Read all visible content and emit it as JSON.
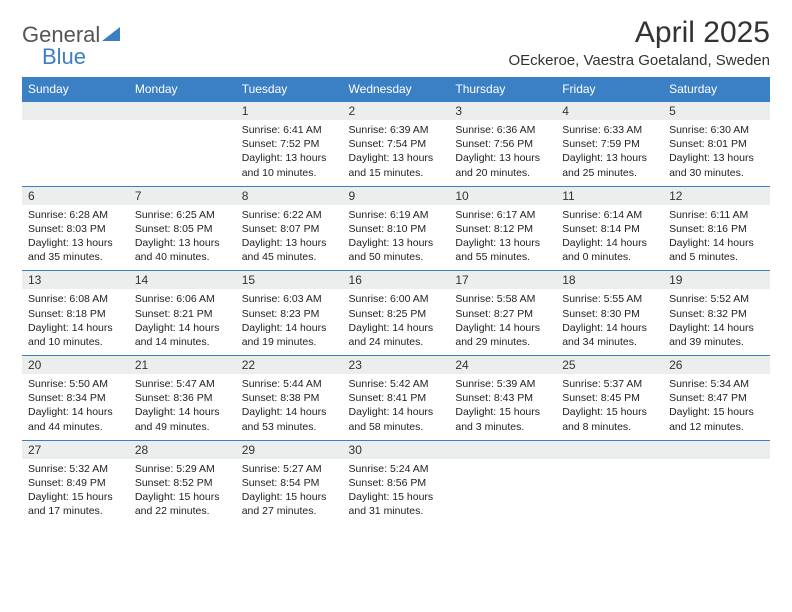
{
  "logo": {
    "text1": "General",
    "text2": "Blue"
  },
  "title": "April 2025",
  "location": "OEckeroe, Vaestra Goetaland, Sweden",
  "headers": [
    "Sunday",
    "Monday",
    "Tuesday",
    "Wednesday",
    "Thursday",
    "Friday",
    "Saturday"
  ],
  "header_bg": "#3b7fc4",
  "daynum_bg": "#eceeee",
  "border_color": "#3b7fc4",
  "weeks": [
    {
      "nums": [
        "",
        "",
        "1",
        "2",
        "3",
        "4",
        "5"
      ],
      "cells": [
        {
          "empty": true
        },
        {
          "empty": true
        },
        {
          "sunrise": "6:41 AM",
          "sunset": "7:52 PM",
          "dl1": "Daylight: 13 hours",
          "dl2": "and 10 minutes."
        },
        {
          "sunrise": "6:39 AM",
          "sunset": "7:54 PM",
          "dl1": "Daylight: 13 hours",
          "dl2": "and 15 minutes."
        },
        {
          "sunrise": "6:36 AM",
          "sunset": "7:56 PM",
          "dl1": "Daylight: 13 hours",
          "dl2": "and 20 minutes."
        },
        {
          "sunrise": "6:33 AM",
          "sunset": "7:59 PM",
          "dl1": "Daylight: 13 hours",
          "dl2": "and 25 minutes."
        },
        {
          "sunrise": "6:30 AM",
          "sunset": "8:01 PM",
          "dl1": "Daylight: 13 hours",
          "dl2": "and 30 minutes."
        }
      ]
    },
    {
      "nums": [
        "6",
        "7",
        "8",
        "9",
        "10",
        "11",
        "12"
      ],
      "cells": [
        {
          "sunrise": "6:28 AM",
          "sunset": "8:03 PM",
          "dl1": "Daylight: 13 hours",
          "dl2": "and 35 minutes."
        },
        {
          "sunrise": "6:25 AM",
          "sunset": "8:05 PM",
          "dl1": "Daylight: 13 hours",
          "dl2": "and 40 minutes."
        },
        {
          "sunrise": "6:22 AM",
          "sunset": "8:07 PM",
          "dl1": "Daylight: 13 hours",
          "dl2": "and 45 minutes."
        },
        {
          "sunrise": "6:19 AM",
          "sunset": "8:10 PM",
          "dl1": "Daylight: 13 hours",
          "dl2": "and 50 minutes."
        },
        {
          "sunrise": "6:17 AM",
          "sunset": "8:12 PM",
          "dl1": "Daylight: 13 hours",
          "dl2": "and 55 minutes."
        },
        {
          "sunrise": "6:14 AM",
          "sunset": "8:14 PM",
          "dl1": "Daylight: 14 hours",
          "dl2": "and 0 minutes."
        },
        {
          "sunrise": "6:11 AM",
          "sunset": "8:16 PM",
          "dl1": "Daylight: 14 hours",
          "dl2": "and 5 minutes."
        }
      ]
    },
    {
      "nums": [
        "13",
        "14",
        "15",
        "16",
        "17",
        "18",
        "19"
      ],
      "cells": [
        {
          "sunrise": "6:08 AM",
          "sunset": "8:18 PM",
          "dl1": "Daylight: 14 hours",
          "dl2": "and 10 minutes."
        },
        {
          "sunrise": "6:06 AM",
          "sunset": "8:21 PM",
          "dl1": "Daylight: 14 hours",
          "dl2": "and 14 minutes."
        },
        {
          "sunrise": "6:03 AM",
          "sunset": "8:23 PM",
          "dl1": "Daylight: 14 hours",
          "dl2": "and 19 minutes."
        },
        {
          "sunrise": "6:00 AM",
          "sunset": "8:25 PM",
          "dl1": "Daylight: 14 hours",
          "dl2": "and 24 minutes."
        },
        {
          "sunrise": "5:58 AM",
          "sunset": "8:27 PM",
          "dl1": "Daylight: 14 hours",
          "dl2": "and 29 minutes."
        },
        {
          "sunrise": "5:55 AM",
          "sunset": "8:30 PM",
          "dl1": "Daylight: 14 hours",
          "dl2": "and 34 minutes."
        },
        {
          "sunrise": "5:52 AM",
          "sunset": "8:32 PM",
          "dl1": "Daylight: 14 hours",
          "dl2": "and 39 minutes."
        }
      ]
    },
    {
      "nums": [
        "20",
        "21",
        "22",
        "23",
        "24",
        "25",
        "26"
      ],
      "cells": [
        {
          "sunrise": "5:50 AM",
          "sunset": "8:34 PM",
          "dl1": "Daylight: 14 hours",
          "dl2": "and 44 minutes."
        },
        {
          "sunrise": "5:47 AM",
          "sunset": "8:36 PM",
          "dl1": "Daylight: 14 hours",
          "dl2": "and 49 minutes."
        },
        {
          "sunrise": "5:44 AM",
          "sunset": "8:38 PM",
          "dl1": "Daylight: 14 hours",
          "dl2": "and 53 minutes."
        },
        {
          "sunrise": "5:42 AM",
          "sunset": "8:41 PM",
          "dl1": "Daylight: 14 hours",
          "dl2": "and 58 minutes."
        },
        {
          "sunrise": "5:39 AM",
          "sunset": "8:43 PM",
          "dl1": "Daylight: 15 hours",
          "dl2": "and 3 minutes."
        },
        {
          "sunrise": "5:37 AM",
          "sunset": "8:45 PM",
          "dl1": "Daylight: 15 hours",
          "dl2": "and 8 minutes."
        },
        {
          "sunrise": "5:34 AM",
          "sunset": "8:47 PM",
          "dl1": "Daylight: 15 hours",
          "dl2": "and 12 minutes."
        }
      ]
    },
    {
      "nums": [
        "27",
        "28",
        "29",
        "30",
        "",
        "",
        ""
      ],
      "cells": [
        {
          "sunrise": "5:32 AM",
          "sunset": "8:49 PM",
          "dl1": "Daylight: 15 hours",
          "dl2": "and 17 minutes."
        },
        {
          "sunrise": "5:29 AM",
          "sunset": "8:52 PM",
          "dl1": "Daylight: 15 hours",
          "dl2": "and 22 minutes."
        },
        {
          "sunrise": "5:27 AM",
          "sunset": "8:54 PM",
          "dl1": "Daylight: 15 hours",
          "dl2": "and 27 minutes."
        },
        {
          "sunrise": "5:24 AM",
          "sunset": "8:56 PM",
          "dl1": "Daylight: 15 hours",
          "dl2": "and 31 minutes."
        },
        {
          "empty": true
        },
        {
          "empty": true
        },
        {
          "empty": true
        }
      ]
    }
  ]
}
